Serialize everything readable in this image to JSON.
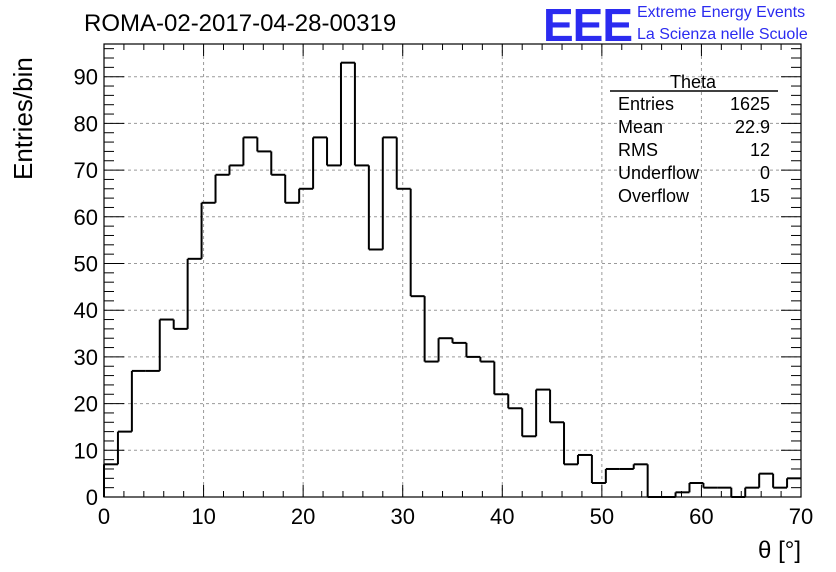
{
  "header": {
    "run_title": "ROMA-02-2017-04-28-00319",
    "logo_text": "EEE",
    "logo_line1": "Extreme Energy Events",
    "logo_line2": "La Scienza nelle Scuole"
  },
  "stats_box": {
    "title": "Theta",
    "rows": [
      {
        "label": "Entries",
        "value": "1625"
      },
      {
        "label": "Mean",
        "value": "22.9"
      },
      {
        "label": "RMS",
        "value": "12"
      },
      {
        "label": "Underflow",
        "value": "0"
      },
      {
        "label": "Overflow",
        "value": "15"
      }
    ]
  },
  "chart_data": {
    "type": "bar",
    "histogram": true,
    "title": "ROMA-02-2017-04-28-00319",
    "xlabel": "θ [°]",
    "ylabel": "Entries/bin",
    "xlim": [
      0,
      70
    ],
    "ylim": [
      0,
      97
    ],
    "xticks": [
      0,
      10,
      20,
      30,
      40,
      50,
      60,
      70
    ],
    "yticks": [
      0,
      10,
      20,
      30,
      40,
      50,
      60,
      70,
      80,
      90
    ],
    "grid": true,
    "bin_width": 1.4,
    "bin_edges_start": 0,
    "values": [
      7,
      14,
      27,
      27,
      38,
      36,
      51,
      63,
      69,
      71,
      77,
      74,
      69,
      63,
      66,
      77,
      71,
      93,
      71,
      53,
      77,
      66,
      43,
      29,
      34,
      33,
      30,
      29,
      22,
      19,
      13,
      23,
      16,
      7,
      9,
      3,
      6,
      6,
      7,
      0,
      0,
      1,
      3,
      2,
      2,
      0,
      2,
      5,
      2,
      4
    ]
  },
  "colors": {
    "line": "#000000",
    "grid": "#9a9a9a",
    "logo": "#2b2bf0",
    "background": "#ffffff"
  }
}
